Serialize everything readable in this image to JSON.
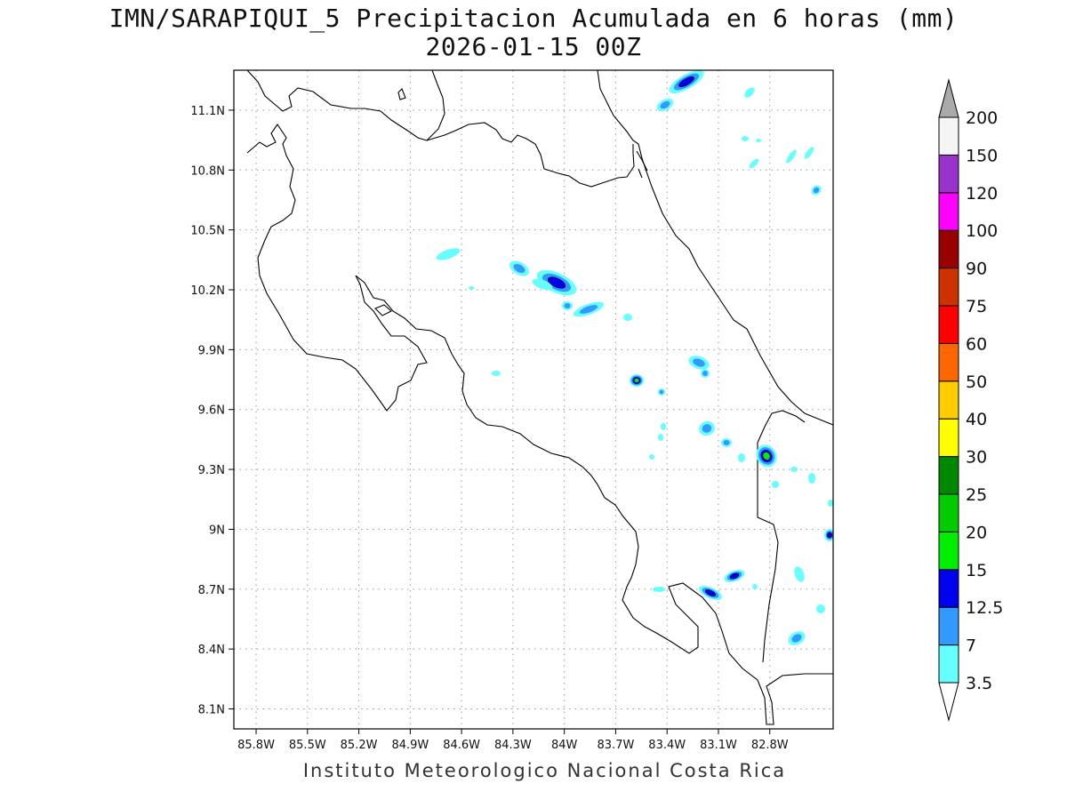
{
  "title": {
    "line1": "IMN/SARAPIQUI_5 Precipitacion Acumulada en 6 horas (mm)",
    "line2": "2026-01-15 00Z"
  },
  "footer": "Instituto Meteorologico Nacional Costa Rica",
  "map": {
    "lon_range": [
      -85.93,
      -82.43
    ],
    "lat_range": [
      8.0,
      11.3
    ],
    "x_ticks": [
      {
        "value": -85.8,
        "label": "85.8W"
      },
      {
        "value": -85.5,
        "label": "85.5W"
      },
      {
        "value": -85.2,
        "label": "85.2W"
      },
      {
        "value": -84.9,
        "label": "84.9W"
      },
      {
        "value": -84.6,
        "label": "84.6W"
      },
      {
        "value": -84.3,
        "label": "84.3W"
      },
      {
        "value": -84.0,
        "label": "84W"
      },
      {
        "value": -83.7,
        "label": "83.7W"
      },
      {
        "value": -83.4,
        "label": "83.4W"
      },
      {
        "value": -83.1,
        "label": "83.1W"
      },
      {
        "value": -82.8,
        "label": "82.8W"
      }
    ],
    "y_ticks": [
      {
        "value": 8.1,
        "label": "8.1N"
      },
      {
        "value": 8.4,
        "label": "8.4N"
      },
      {
        "value": 8.7,
        "label": "8.7N"
      },
      {
        "value": 9.0,
        "label": "9N"
      },
      {
        "value": 9.3,
        "label": "9.3N"
      },
      {
        "value": 9.6,
        "label": "9.6N"
      },
      {
        "value": 9.9,
        "label": "9.9N"
      },
      {
        "value": 10.2,
        "label": "10.2N"
      },
      {
        "value": 10.5,
        "label": "10.5N"
      },
      {
        "value": 10.8,
        "label": "10.8N"
      },
      {
        "value": 11.1,
        "label": "11.1N"
      }
    ],
    "grid": true
  },
  "colorbar": {
    "levels": [
      "3.5",
      "7",
      "12.5",
      "15",
      "20",
      "25",
      "30",
      "40",
      "50",
      "60",
      "75",
      "90",
      "100",
      "120",
      "150",
      "200"
    ],
    "colors": [
      "#66ffff",
      "#3399ff",
      "#0000ee",
      "#00ee00",
      "#00cc00",
      "#008800",
      "#ffff00",
      "#ffcc00",
      "#ff6600",
      "#ff0000",
      "#cc3300",
      "#990000",
      "#ff00ff",
      "#9933cc",
      "#f5f5f5",
      "#aaaaaa"
    ]
  }
}
